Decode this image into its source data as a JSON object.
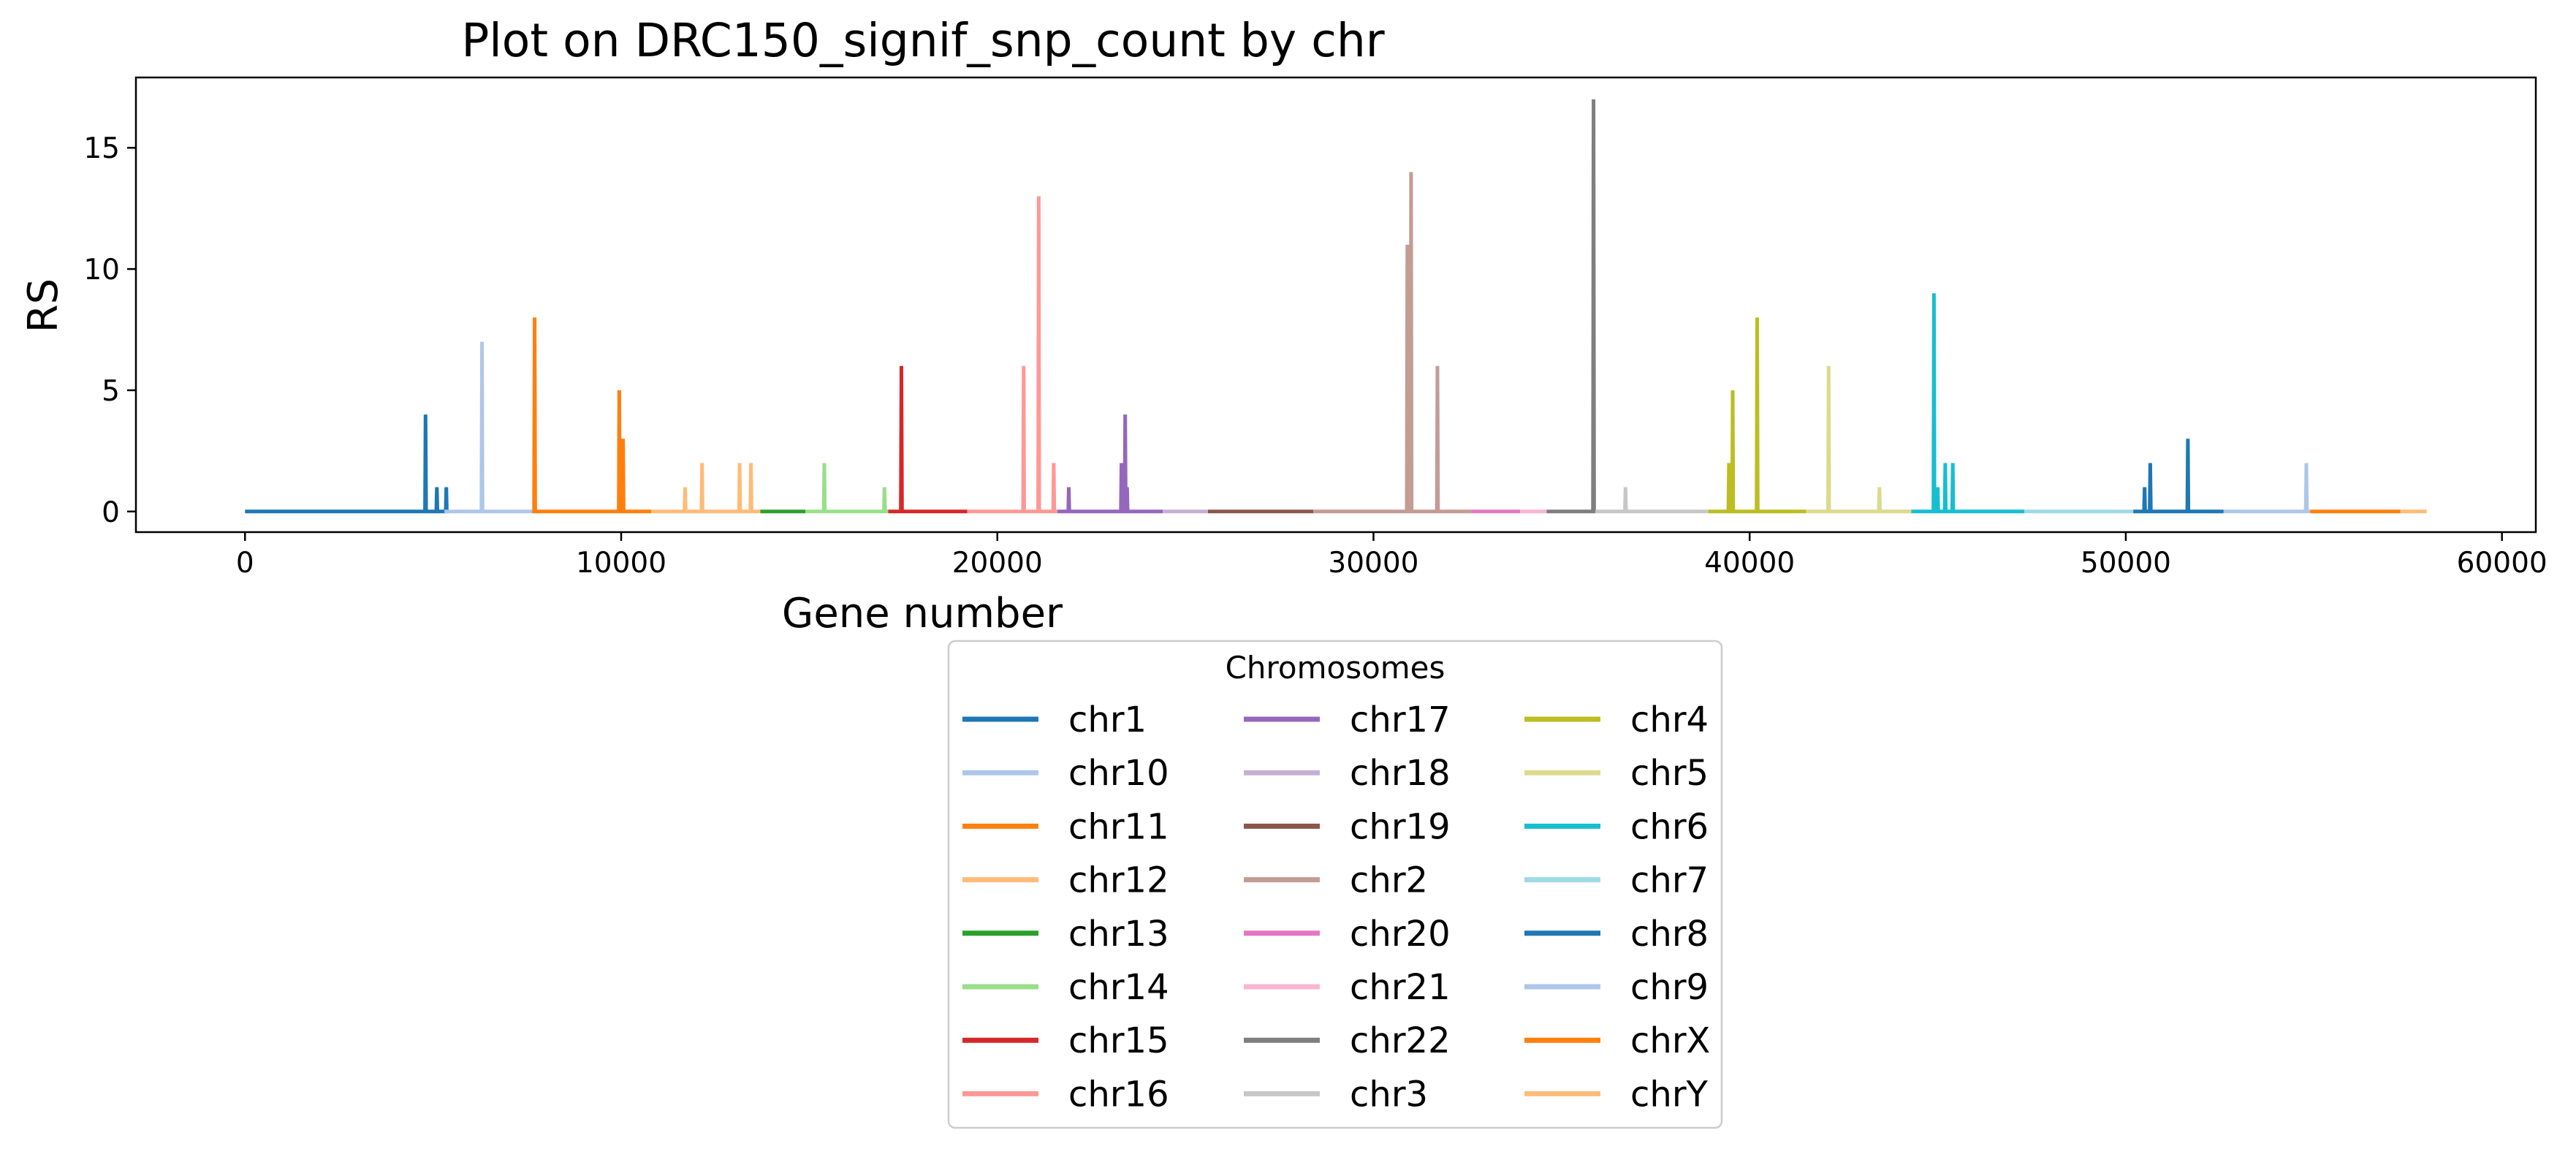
{
  "chart_data": {
    "type": "line",
    "title": "Plot on DRC150_signif_snp_count by chr",
    "xlabel": "Gene number",
    "ylabel": "RS",
    "xlim": [
      -2900,
      60900
    ],
    "ylim": [
      -0.85,
      17.9
    ],
    "xticks": [
      0,
      10000,
      20000,
      30000,
      40000,
      50000,
      60000
    ],
    "yticks": [
      0,
      5,
      10,
      15
    ],
    "grid": false,
    "legend": {
      "title": "Chromosomes",
      "placement": "below plot, center",
      "columns": 3
    },
    "series": [
      {
        "name": "chr1",
        "color": "#1f77b4",
        "x_range": [
          0,
          5300
        ],
        "spikes": [
          [
            4800,
            4
          ],
          [
            5100,
            1
          ],
          [
            5350,
            1
          ]
        ]
      },
      {
        "name": "chr10",
        "color": "#aec7e8",
        "x_range": [
          5300,
          7700
        ],
        "spikes": [
          [
            6300,
            7
          ]
        ]
      },
      {
        "name": "chr11",
        "color": "#ff7f0e",
        "x_range": [
          7700,
          10800
        ],
        "spikes": [
          [
            7700,
            8
          ],
          [
            9950,
            5
          ],
          [
            10050,
            3
          ]
        ]
      },
      {
        "name": "chr12",
        "color": "#ffbb78",
        "x_range": [
          10800,
          13700
        ],
        "spikes": [
          [
            11700,
            1
          ],
          [
            12150,
            2
          ],
          [
            13150,
            2
          ],
          [
            13450,
            2
          ]
        ]
      },
      {
        "name": "chr13",
        "color": "#2ca02c",
        "x_range": [
          13700,
          14900
        ],
        "spikes": []
      },
      {
        "name": "chr14",
        "color": "#98df8a",
        "x_range": [
          14900,
          17100
        ],
        "spikes": [
          [
            15400,
            2
          ],
          [
            17000,
            1
          ]
        ]
      },
      {
        "name": "chr15",
        "color": "#d62728",
        "x_range": [
          17100,
          19200
        ],
        "spikes": [
          [
            17450,
            6
          ]
        ]
      },
      {
        "name": "chr16",
        "color": "#ff9896",
        "x_range": [
          19200,
          21600
        ],
        "spikes": [
          [
            20700,
            6
          ],
          [
            21100,
            13
          ],
          [
            21500,
            2
          ]
        ]
      },
      {
        "name": "chr17",
        "color": "#9467bd",
        "x_range": [
          21600,
          24400
        ],
        "spikes": [
          [
            21900,
            1
          ],
          [
            23300,
            2
          ],
          [
            23400,
            4
          ],
          [
            23450,
            1
          ]
        ]
      },
      {
        "name": "chr18",
        "color": "#c5b0d5",
        "x_range": [
          24400,
          25600
        ],
        "spikes": []
      },
      {
        "name": "chr19",
        "color": "#8c564b",
        "x_range": [
          25600,
          28400
        ],
        "spikes": []
      },
      {
        "name": "chr2",
        "color": "#c49c94",
        "x_range": [
          28400,
          32600
        ],
        "spikes": [
          [
            30900,
            11
          ],
          [
            31000,
            14
          ],
          [
            31700,
            6
          ]
        ]
      },
      {
        "name": "chr20",
        "color": "#e377c2",
        "x_range": [
          32600,
          33900
        ],
        "spikes": []
      },
      {
        "name": "chr21",
        "color": "#f7b6d2",
        "x_range": [
          33900,
          34600
        ],
        "spikes": []
      },
      {
        "name": "chr22",
        "color": "#7f7f7f",
        "x_range": [
          34600,
          35900
        ],
        "spikes": [
          [
            35850,
            17
          ]
        ]
      },
      {
        "name": "chr3",
        "color": "#c7c7c7",
        "x_range": [
          35900,
          38900
        ],
        "spikes": [
          [
            36700,
            1
          ]
        ]
      },
      {
        "name": "chr4",
        "color": "#bcbd22",
        "x_range": [
          38900,
          41500
        ],
        "spikes": [
          [
            39450,
            2
          ],
          [
            39550,
            5
          ],
          [
            40200,
            8
          ]
        ]
      },
      {
        "name": "chr5",
        "color": "#dbdb8d",
        "x_range": [
          41500,
          44300
        ],
        "spikes": [
          [
            42100,
            6
          ],
          [
            43450,
            1
          ]
        ]
      },
      {
        "name": "chr6",
        "color": "#17becf",
        "x_range": [
          44300,
          47300
        ],
        "spikes": [
          [
            44900,
            9
          ],
          [
            45000,
            1
          ],
          [
            45200,
            2
          ],
          [
            45400,
            2
          ]
        ]
      },
      {
        "name": "chr7",
        "color": "#9edae5",
        "x_range": [
          47300,
          50200
        ],
        "spikes": []
      },
      {
        "name": "chr8",
        "color": "#1f77b4",
        "x_range": [
          50200,
          52600
        ],
        "spikes": [
          [
            50500,
            1
          ],
          [
            50650,
            2
          ],
          [
            51650,
            3
          ]
        ]
      },
      {
        "name": "chr9",
        "color": "#aec7e8",
        "x_range": [
          52600,
          54900
        ],
        "spikes": [
          [
            54800,
            2
          ]
        ]
      },
      {
        "name": "chrX",
        "color": "#ff7f0e",
        "x_range": [
          54900,
          57300
        ],
        "spikes": []
      },
      {
        "name": "chrY",
        "color": "#ffbb78",
        "x_range": [
          57300,
          58000
        ],
        "spikes": []
      }
    ]
  }
}
